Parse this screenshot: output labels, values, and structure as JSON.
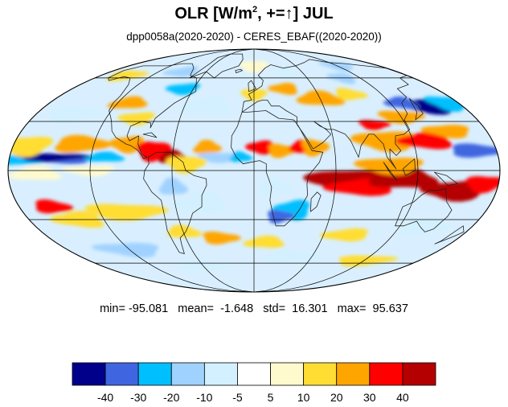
{
  "title": {
    "main": "OLR [W/m",
    "sup": "2",
    "rest": ", +=",
    "arrow": "↑",
    "end": "] JUL"
  },
  "subtitle": "dpp0058a(2020-2020) - CERES_EBAF((2020-2020))",
  "stats": {
    "min_label": "min=",
    "min": "-95.081",
    "mean_label": "mean=",
    "mean": "-1.648",
    "std_label": "std=",
    "std": "16.301",
    "max_label": "max=",
    "max": "95.637"
  },
  "colorbar": {
    "colors": [
      "#00008b",
      "#3f66e0",
      "#00bfff",
      "#a0d2ff",
      "#d2f0ff",
      "#ffffff",
      "#fffacd",
      "#ffdd33",
      "#ffa500",
      "#ff0000",
      "#b40000"
    ],
    "labels": [
      "-40",
      "-30",
      "-20",
      "-10",
      "-5",
      "5",
      "10",
      "20",
      "30",
      "40"
    ]
  },
  "map": {
    "projection": "Mollweide",
    "grid_lon_step": 60,
    "grid_lat_step": 30
  }
}
